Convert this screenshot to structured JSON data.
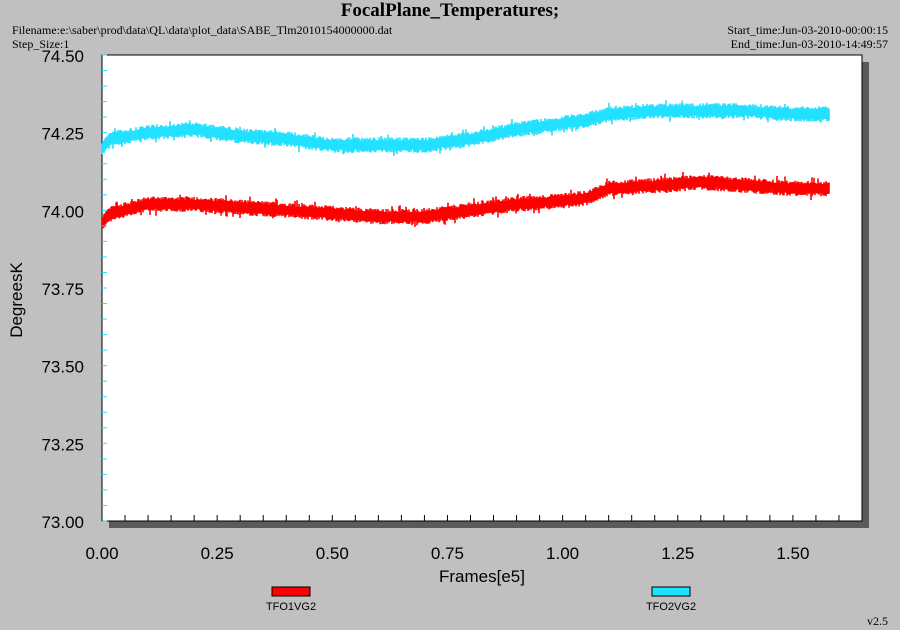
{
  "header": {
    "title": "FocalPlane_Temperatures;",
    "filename": "Filename:e:\\saber\\prod\\data\\QL\\data\\plot_data\\SABE_Tlm2010154000000.dat",
    "step_size": "Step_Size:1",
    "start_time": "Start_time:Jun-03-2010-00:00:15",
    "end_time": "End_time:Jun-03-2010-14:49:57",
    "version": "v2.5"
  },
  "colors": {
    "background": "#c0c0c0",
    "plot_area": "#ffffff",
    "shadow": "#5a5a5a",
    "tfo1": "#ff0000",
    "tfo2": "#22e0ff"
  },
  "chart_data": {
    "type": "line",
    "title": "FocalPlane_Temperatures;",
    "xlabel": "Frames[e5]",
    "ylabel": "DegreesK",
    "xlim": [
      0,
      1.65
    ],
    "ylim": [
      73.0,
      74.5
    ],
    "x_ticks": [
      "0.00",
      "0.25",
      "0.50",
      "0.75",
      "1.00",
      "1.25",
      "1.50"
    ],
    "y_ticks": [
      "73.00",
      "73.25",
      "73.50",
      "73.75",
      "74.00",
      "74.25",
      "74.50"
    ],
    "grid": false,
    "legend_position": "bottom",
    "series": [
      {
        "name": "TFO1VG2",
        "color": "#ff0000",
        "noise_band": 0.05,
        "x": [
          0.0,
          0.02,
          0.1,
          0.2,
          0.3,
          0.4,
          0.5,
          0.6,
          0.7,
          0.8,
          0.9,
          1.0,
          1.05,
          1.1,
          1.2,
          1.3,
          1.4,
          1.5,
          1.58
        ],
        "values": [
          73.96,
          73.99,
          74.02,
          74.02,
          74.01,
          74.0,
          73.99,
          73.98,
          73.98,
          74.0,
          74.02,
          74.03,
          74.04,
          74.07,
          74.08,
          74.09,
          74.08,
          74.07,
          74.07
        ]
      },
      {
        "name": "TFO2VG2",
        "color": "#22e0ff",
        "noise_band": 0.05,
        "x": [
          0.0,
          0.02,
          0.1,
          0.2,
          0.3,
          0.4,
          0.5,
          0.6,
          0.7,
          0.8,
          0.9,
          1.0,
          1.05,
          1.1,
          1.2,
          1.3,
          1.4,
          1.5,
          1.58
        ],
        "values": [
          74.2,
          74.23,
          74.25,
          74.26,
          74.24,
          74.23,
          74.21,
          74.21,
          74.21,
          74.23,
          74.26,
          74.28,
          74.29,
          74.31,
          74.32,
          74.32,
          74.32,
          74.31,
          74.31
        ]
      }
    ]
  }
}
